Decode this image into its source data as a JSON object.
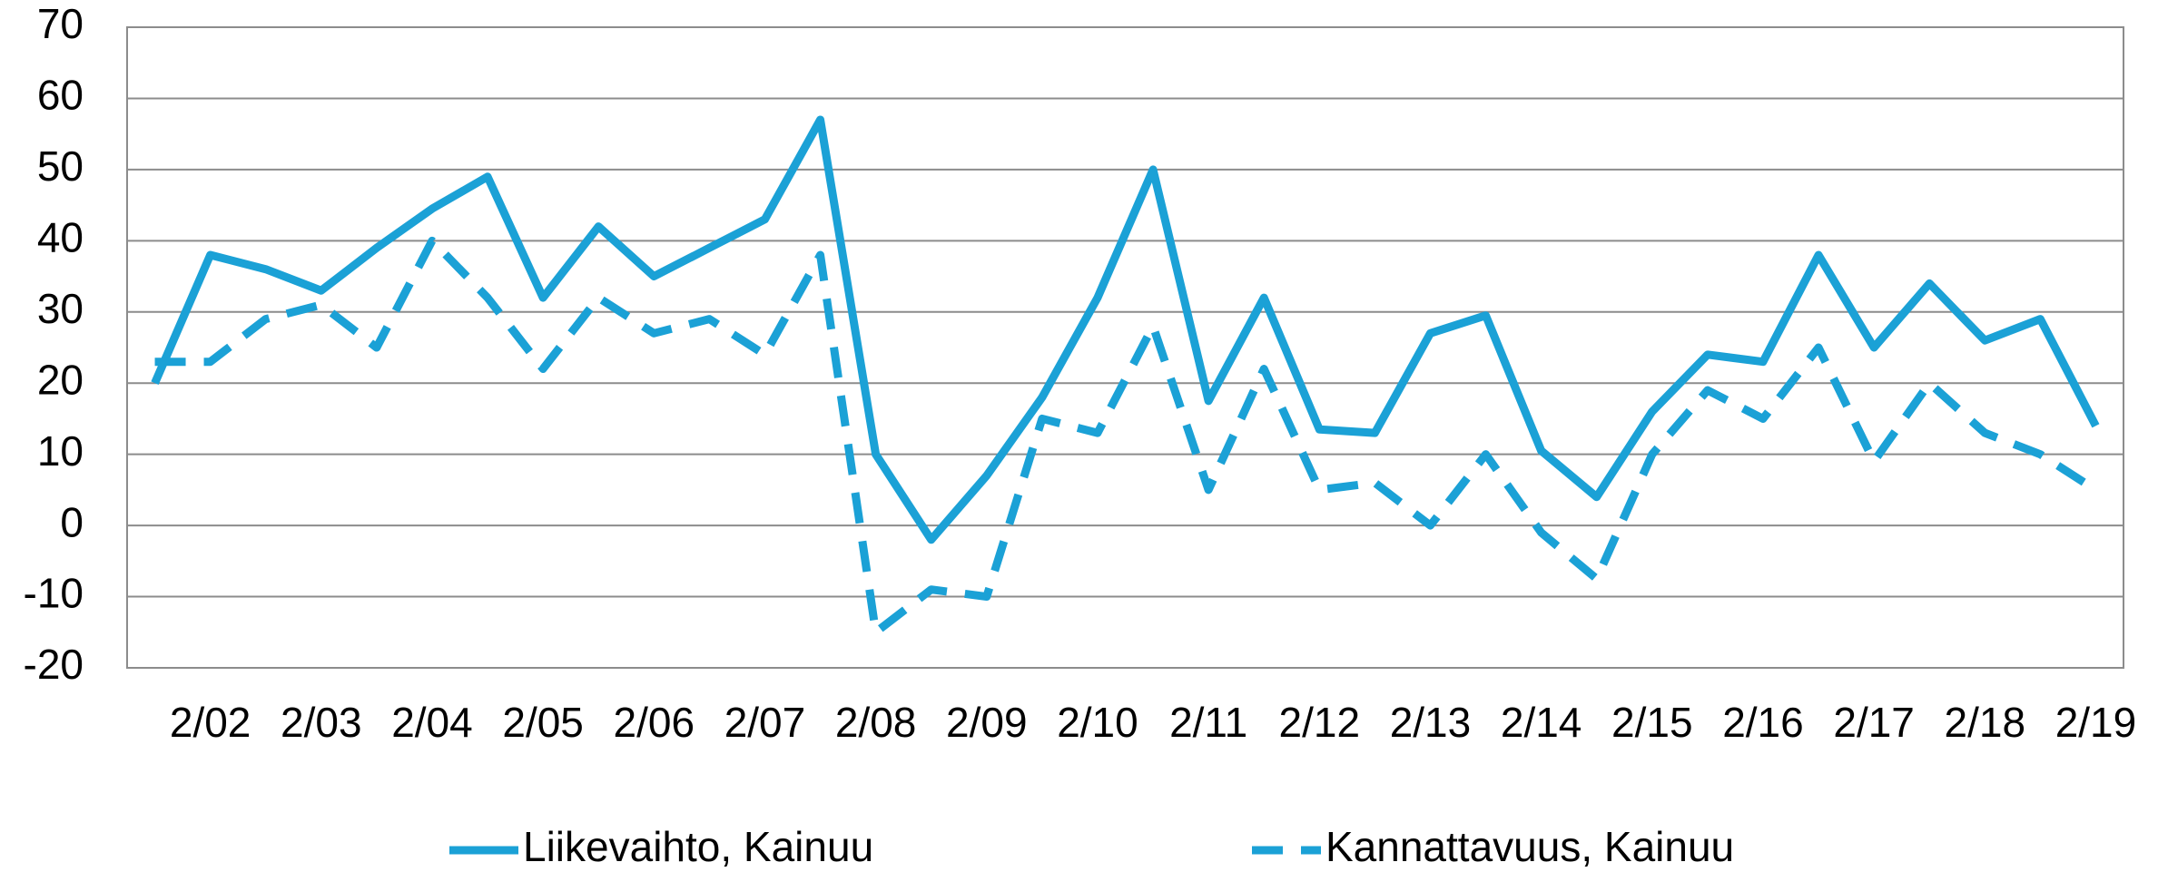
{
  "chart_data": {
    "type": "line",
    "categories": [
      null,
      "2/02",
      null,
      "2/03",
      null,
      "2/04",
      null,
      "2/05",
      null,
      "2/06",
      null,
      "2/07",
      null,
      "2/08",
      null,
      "2/09",
      null,
      "2/10",
      null,
      "2/11",
      null,
      "2/12",
      null,
      "2/13",
      null,
      "2/14",
      null,
      "2/15",
      null,
      "2/16",
      null,
      "2/17",
      null,
      "2/18",
      null,
      "2/19"
    ],
    "series": [
      {
        "name": "Liikevaihto, Kainuu",
        "color": "#1ba1d6",
        "dash": false,
        "values": [
          20,
          38,
          36,
          33,
          39,
          44.5,
          49,
          32,
          42,
          35,
          39,
          43,
          57,
          10,
          -2,
          7,
          18,
          32,
          50,
          17.5,
          32,
          13.5,
          13,
          27,
          29.5,
          10.5,
          4,
          16,
          24,
          23,
          38,
          25,
          34,
          26,
          29,
          14
        ]
      },
      {
        "name": "Kannattavuus, Kainuu",
        "color": "#1ba1d6",
        "dash": true,
        "values": [
          23,
          23,
          29,
          31,
          25,
          40,
          32,
          22,
          32,
          27,
          29,
          24,
          38,
          -15,
          -9,
          -10,
          15,
          13,
          28,
          5,
          22,
          5,
          6,
          0,
          10,
          -1,
          -7.5,
          10,
          19,
          15,
          25,
          9,
          20,
          13,
          10,
          5
        ]
      }
    ],
    "ylim": [
      -20,
      70
    ],
    "yticks": [
      -20,
      -10,
      0,
      10,
      20,
      30,
      40,
      50,
      60,
      70
    ],
    "grid": true,
    "legend": "bottom"
  }
}
